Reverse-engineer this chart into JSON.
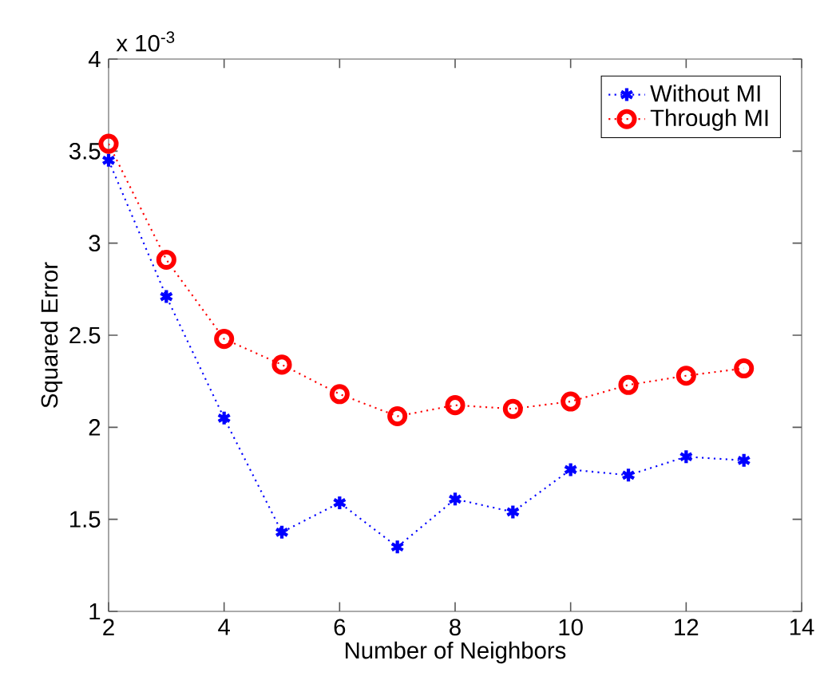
{
  "chart_data": {
    "type": "line",
    "xlabel": "Number of Neighbors",
    "ylabel": "Squared Error",
    "annotations": [
      "x 10$^{-3}$"
    ],
    "x": [
      2,
      3,
      4,
      5,
      6,
      7,
      8,
      9,
      10,
      11,
      12,
      13
    ],
    "series": [
      {
        "name": "Without MI",
        "color": "#0000ff",
        "marker": "cross",
        "line_style": "dotted",
        "values": [
          3.45,
          2.71,
          2.05,
          1.43,
          1.59,
          1.35,
          1.61,
          1.54,
          1.77,
          1.74,
          1.84,
          1.82
        ]
      },
      {
        "name": "Through MI",
        "color": "#ff0000",
        "marker": "circle",
        "line_style": "dotted",
        "values": [
          3.54,
          2.91,
          2.48,
          2.34,
          2.18,
          2.06,
          2.12,
          2.1,
          2.14,
          2.23,
          2.28,
          2.32
        ]
      }
    ],
    "xlim": [
      2,
      14
    ],
    "xticks": [
      2,
      4,
      6,
      8,
      10,
      12,
      14
    ],
    "ylim": [
      1,
      4
    ],
    "yticks": [
      1,
      1.5,
      2,
      2.5,
      3,
      3.5,
      4
    ],
    "grid": false,
    "legend": "top right"
  }
}
